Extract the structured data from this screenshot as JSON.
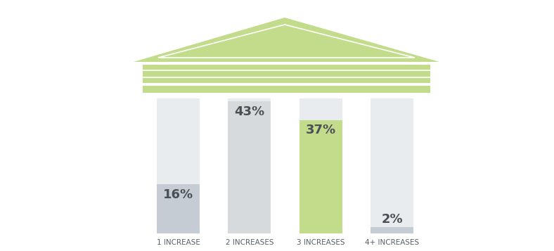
{
  "chart_data": {
    "type": "bar",
    "categories": [
      "1 INCREASE",
      "2 INCREASES",
      "3 INCREASES",
      "4+ INCREASES"
    ],
    "values": [
      16,
      43,
      37,
      2
    ],
    "value_labels": [
      "16%",
      "43%",
      "37%",
      "2%"
    ],
    "colors": [
      "#c5ccd3",
      "#d6dadd",
      "#c3dc8c",
      "#c5ccd3"
    ],
    "ylim": [
      0,
      44
    ],
    "yticks": [],
    "grid": false,
    "data_labels": true,
    "tick_labels": "x"
  }
}
